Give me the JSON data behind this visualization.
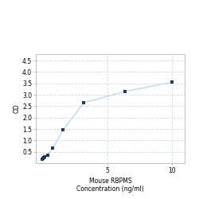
{
  "x": [
    0.0,
    0.05,
    0.1,
    0.2,
    0.4,
    0.8,
    1.6,
    3.2,
    6.4,
    10.0
  ],
  "y": [
    0.18,
    0.22,
    0.25,
    0.28,
    0.35,
    0.65,
    1.45,
    2.65,
    3.15,
    3.55
  ],
  "xlabel_line1": "Mouse RBPMS",
  "xlabel_line2": "Concentration (ng/ml)",
  "ylabel": "OD",
  "ylim": [
    0.0,
    4.8
  ],
  "xlim": [
    -0.5,
    11.0
  ],
  "yticks": [
    0.5,
    1.0,
    1.5,
    2.0,
    2.5,
    3.0,
    3.5,
    4.0,
    4.5
  ],
  "xticks": [
    5,
    10
  ],
  "line_color": "#b8d4ea",
  "marker_color": "#1a3a6b",
  "marker_size": 4,
  "background_color": "#ffffff",
  "grid_color": "#c8dce8",
  "axis_fontsize": 5.5,
  "tick_fontsize": 5.5
}
